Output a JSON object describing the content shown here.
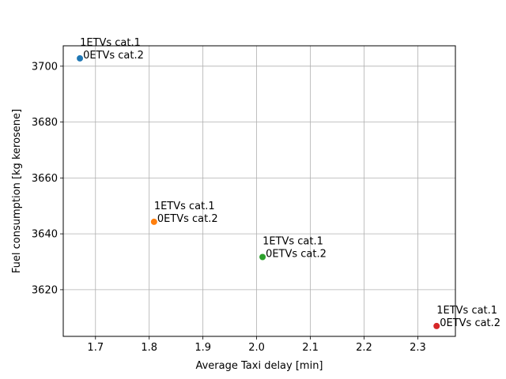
{
  "chart_data": {
    "type": "scatter",
    "title": "",
    "xlabel": "Average Taxi delay [min]",
    "ylabel": "Fuel consumption [kg kerosene]",
    "xlim": [
      1.64,
      2.37
    ],
    "ylim": [
      3603.3,
      3707.3
    ],
    "xticks": [
      1.7,
      1.8,
      1.9,
      2.0,
      2.1,
      2.2,
      2.3
    ],
    "yticks": [
      3620,
      3640,
      3660,
      3680,
      3700
    ],
    "grid": true,
    "points": [
      {
        "x": 1.671,
        "y": 3702.8,
        "color": "#1f77b4",
        "label_line1": "1ETVs cat.1",
        "label_line2": "0ETVs cat.2"
      },
      {
        "x": 1.809,
        "y": 3644.3,
        "color": "#ff7f0e",
        "label_line1": "1ETVs cat.1",
        "label_line2": "0ETVs cat.2"
      },
      {
        "x": 2.011,
        "y": 3631.7,
        "color": "#2ca02c",
        "label_line1": "1ETVs cat.1",
        "label_line2": "0ETVs cat.2"
      },
      {
        "x": 2.335,
        "y": 3607.0,
        "color": "#d62728",
        "label_line1": "1ETVs cat.1",
        "label_line2": "0ETVs cat.2"
      }
    ]
  }
}
